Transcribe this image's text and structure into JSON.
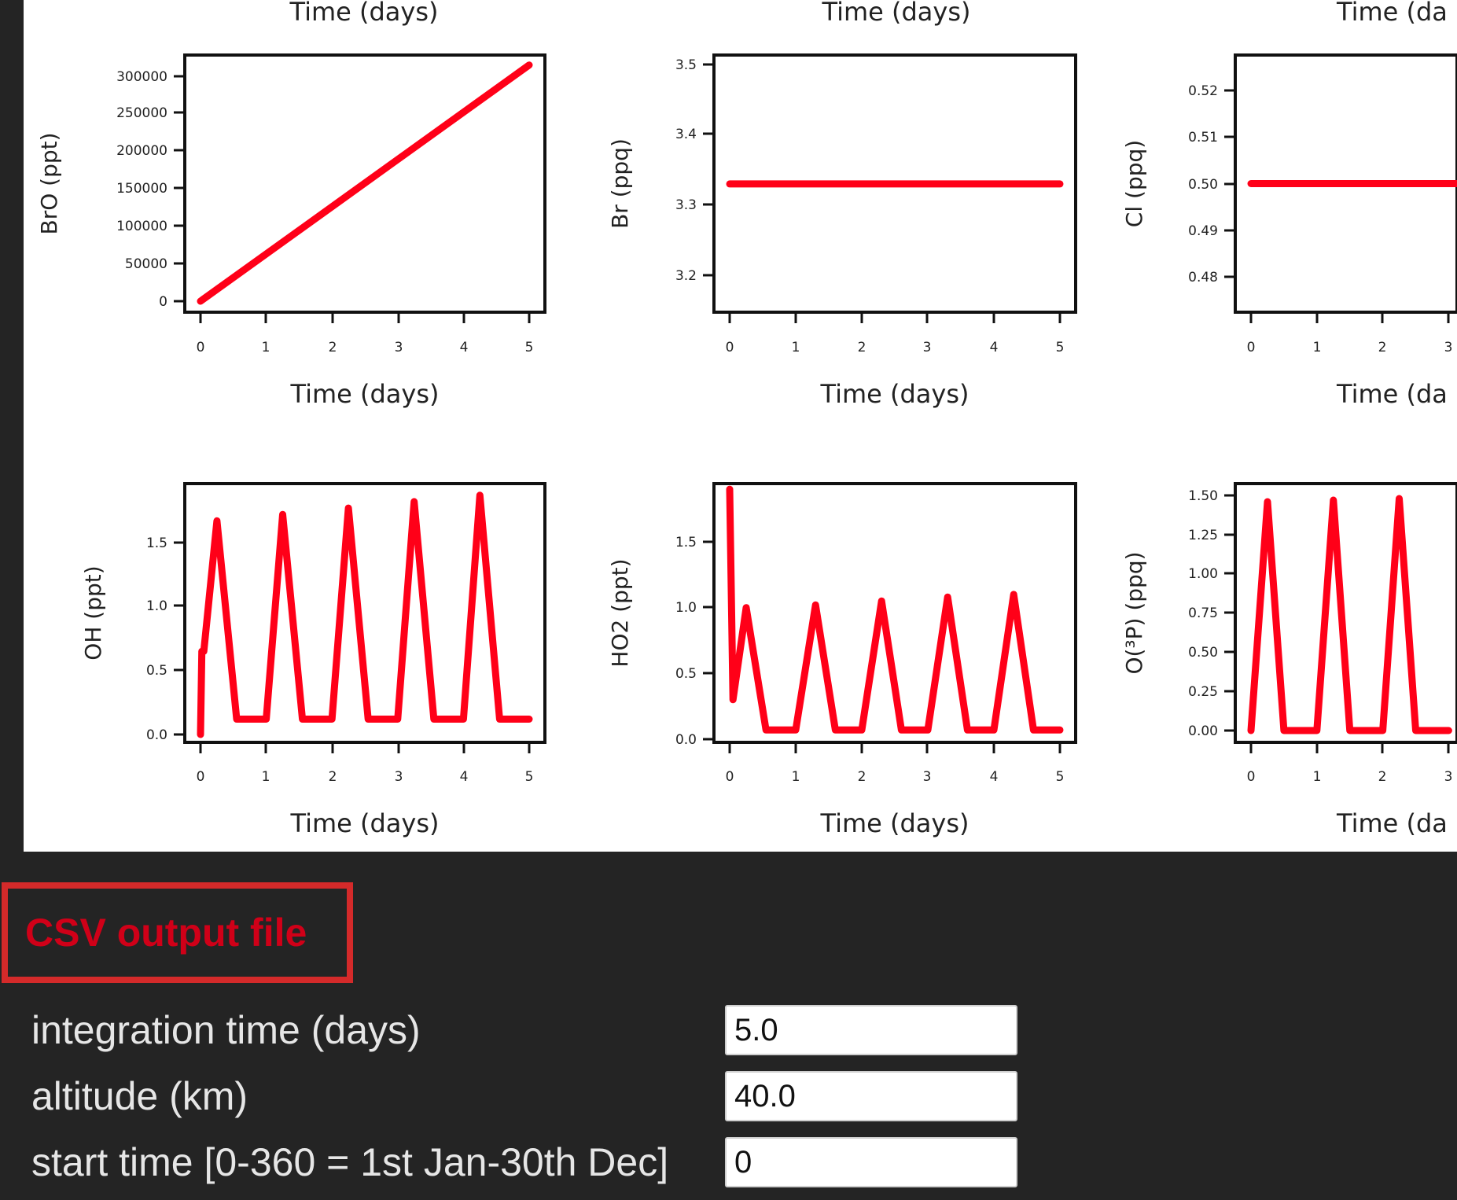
{
  "plots": {
    "top_xlabel": "Time (days)",
    "x_ticks": [
      "0",
      "1",
      "2",
      "3",
      "4",
      "5"
    ],
    "panels": [
      {
        "id": "bro",
        "ylabel": "BrO (ppt)",
        "xlabel": "Time (days)",
        "y_ticks": [
          "300000",
          "250000",
          "200000",
          "150000",
          "100000",
          "50000",
          "0"
        ]
      },
      {
        "id": "br",
        "ylabel": "Br (ppq)",
        "xlabel": "Time (days)",
        "y_ticks": [
          "3.5",
          "3.4",
          "3.3",
          "3.2"
        ]
      },
      {
        "id": "cl",
        "ylabel": "Cl (ppq)",
        "xlabel": "Time (da",
        "y_ticks": [
          "0.52",
          "0.51",
          "0.50",
          "0.49",
          "0.48"
        ]
      },
      {
        "id": "oh",
        "ylabel": "OH (ppt)",
        "xlabel": "Time (days)",
        "y_ticks": [
          "1.5",
          "1.0",
          "0.5",
          "0.0"
        ]
      },
      {
        "id": "ho2",
        "ylabel": "HO2 (ppt)",
        "xlabel": "Time (days)",
        "y_ticks": [
          "1.5",
          "1.0",
          "0.5",
          "0.0"
        ]
      },
      {
        "id": "o3p",
        "ylabel": "O(³P) (ppq)",
        "xlabel": "Time (da",
        "y_ticks": [
          "1.50",
          "1.25",
          "1.00",
          "0.75",
          "0.50",
          "0.25",
          "0.00"
        ]
      }
    ],
    "line_color": "#ff0018"
  },
  "chart_data": [
    {
      "type": "line",
      "xlabel": "Time (days)",
      "ylabel": "BrO (ppt)",
      "x": [
        0,
        5
      ],
      "series": [
        {
          "values": [
            0,
            315000
          ]
        }
      ],
      "ylim": [
        -10000,
        330000
      ]
    },
    {
      "type": "line",
      "xlabel": "Time (days)",
      "ylabel": "Br (ppq)",
      "x": [
        0,
        5
      ],
      "series": [
        {
          "values": [
            3.33,
            3.33
          ]
        }
      ],
      "ylim": [
        3.15,
        3.52
      ]
    },
    {
      "type": "line",
      "xlabel": "Time (days)",
      "ylabel": "Cl (ppq)",
      "x": [
        0,
        5
      ],
      "series": [
        {
          "values": [
            0.5,
            0.5
          ]
        }
      ],
      "ylim": [
        0.472,
        0.528
      ]
    },
    {
      "type": "line",
      "xlabel": "Time (days)",
      "ylabel": "OH (ppt)",
      "x": [
        0,
        0.02,
        0.05,
        0.25,
        0.55,
        1.0,
        1.25,
        1.55,
        2.0,
        2.25,
        2.55,
        3.0,
        3.25,
        3.55,
        4.0,
        4.25,
        4.55,
        5.0
      ],
      "series": [
        {
          "values": [
            0.0,
            0.65,
            0.65,
            1.67,
            0.12,
            0.12,
            1.72,
            0.12,
            0.12,
            1.77,
            0.12,
            0.12,
            1.82,
            0.12,
            0.12,
            1.87,
            0.12,
            0.12
          ]
        }
      ],
      "ylim": [
        -0.05,
        1.9
      ]
    },
    {
      "type": "line",
      "xlabel": "Time (days)",
      "ylabel": "HO2 (ppt)",
      "x": [
        0,
        0.05,
        0.25,
        0.55,
        1.0,
        1.3,
        1.6,
        2.0,
        2.3,
        2.6,
        3.0,
        3.3,
        3.6,
        4.0,
        4.3,
        4.6,
        5.0
      ],
      "series": [
        {
          "values": [
            1.9,
            0.3,
            1.0,
            0.07,
            0.07,
            1.02,
            0.07,
            0.07,
            1.05,
            0.07,
            0.07,
            1.08,
            0.07,
            0.07,
            1.1,
            0.07,
            0.07
          ]
        }
      ],
      "ylim": [
        -0.03,
        1.9
      ]
    },
    {
      "type": "line",
      "xlabel": "Time (days)",
      "ylabel": "O(³P) (ppq)",
      "x": [
        0,
        0.25,
        0.5,
        1.0,
        1.25,
        1.5,
        2.0,
        2.25,
        2.5,
        3.0
      ],
      "series": [
        {
          "values": [
            0.0,
            1.46,
            0.0,
            0.0,
            1.47,
            0.0,
            0.0,
            1.48,
            0.0,
            0.0
          ]
        }
      ],
      "ylim": [
        -0.06,
        1.55
      ]
    }
  ],
  "csv": {
    "link_label": "CSV output file"
  },
  "form": {
    "integration_label": "integration time (days)",
    "integration_value": "5.0",
    "altitude_label": "altitude (km)",
    "altitude_value": "40.0",
    "start_label": "start time [0-360 = 1st Jan-30th Dec]",
    "start_value": "0"
  }
}
